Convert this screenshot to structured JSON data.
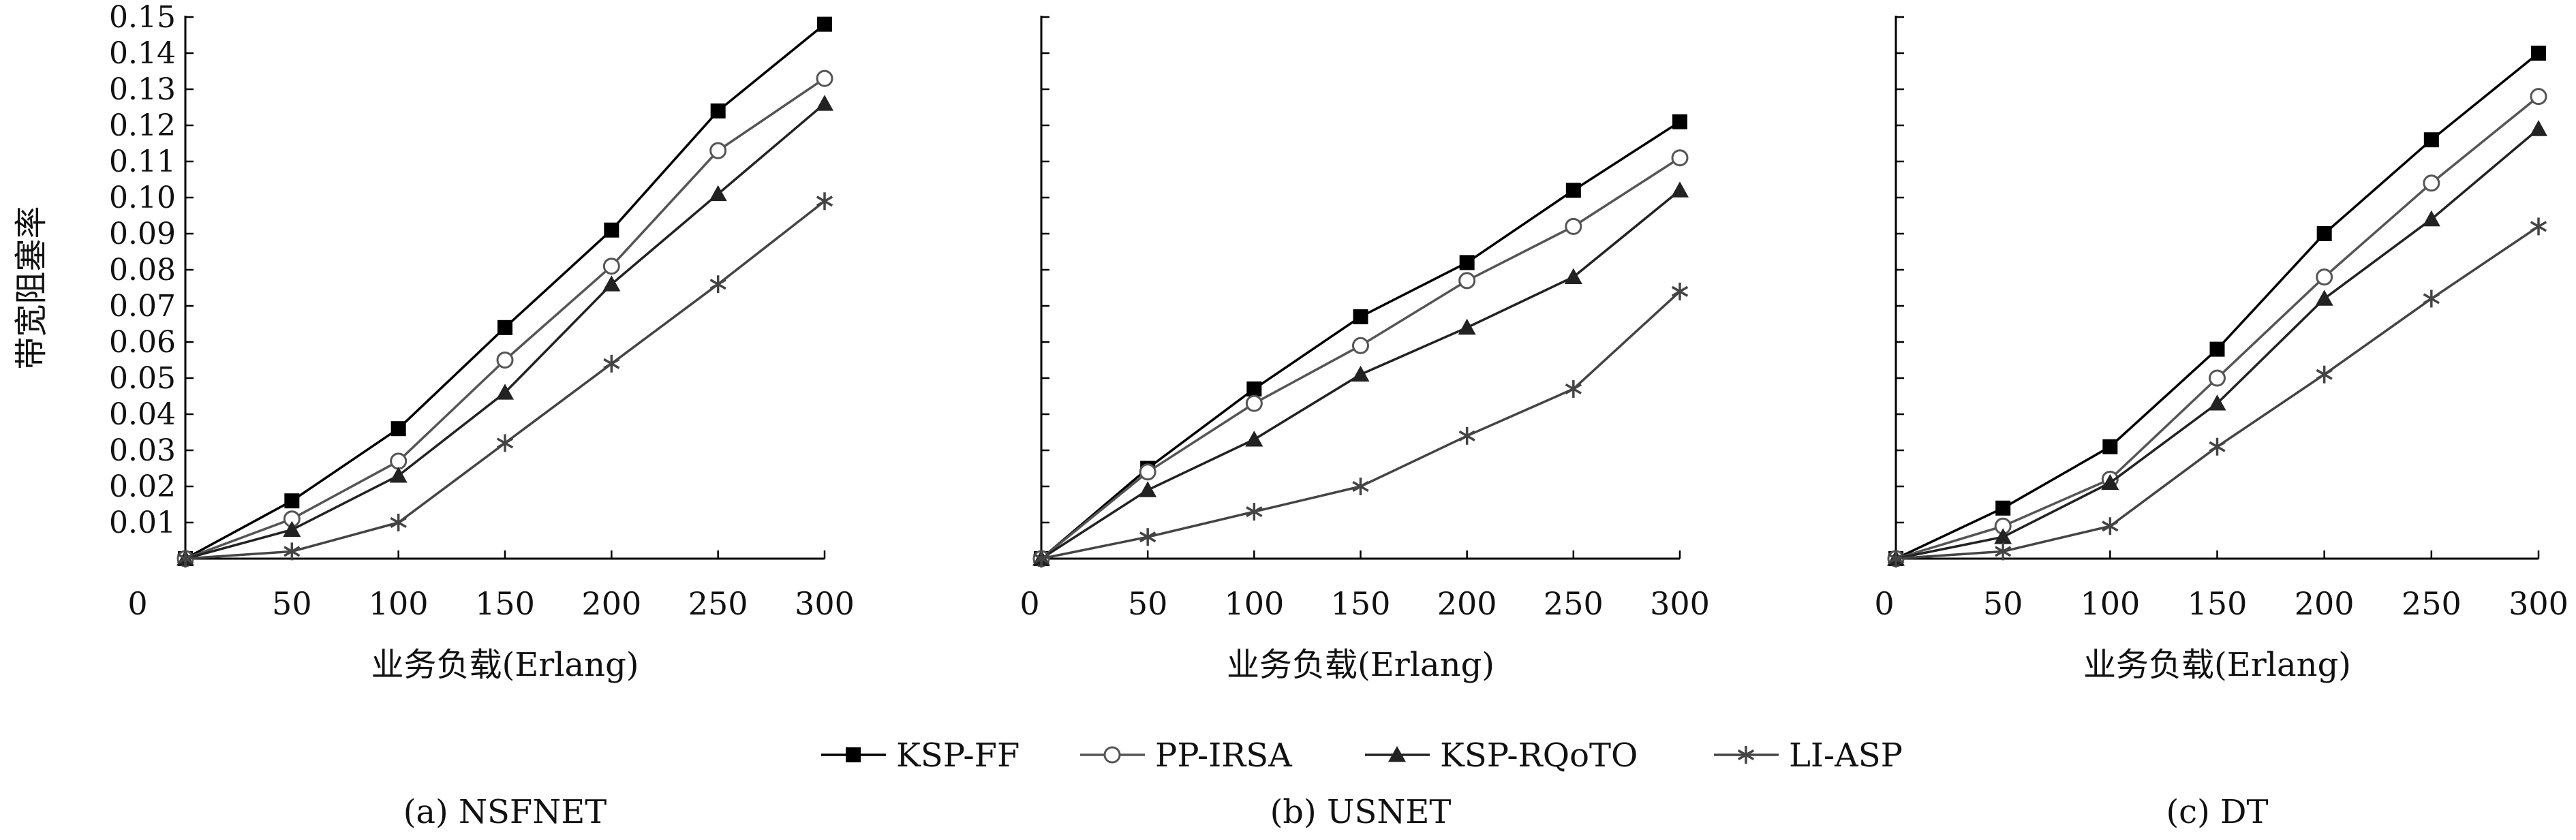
{
  "chart_data": [
    {
      "type": "line",
      "caption": "(a) NSFNET",
      "xlabel": "业务负载(Erlang)",
      "ylabel": "带宽阻塞率",
      "x": [
        0,
        50,
        100,
        150,
        200,
        250,
        300
      ],
      "xticks": [
        "0",
        "50",
        "100",
        "150",
        "200",
        "250",
        "300"
      ],
      "yticks": [
        "0.01",
        "0.02",
        "0.03",
        "0.04",
        "0.05",
        "0.06",
        "0.07",
        "0.08",
        "0.09",
        "0.10",
        "0.11",
        "0.12",
        "0.13",
        "0.14",
        "0.15"
      ],
      "xlim": [
        0,
        300
      ],
      "ylim": [
        0,
        0.15
      ],
      "series": [
        {
          "name": "KSP-FF",
          "values": [
            0,
            0.016,
            0.036,
            0.064,
            0.091,
            0.124,
            0.148
          ]
        },
        {
          "name": "PP-IRSA",
          "values": [
            0,
            0.011,
            0.027,
            0.055,
            0.081,
            0.113,
            0.133
          ]
        },
        {
          "name": "KSP-RQoTO",
          "values": [
            0,
            0.008,
            0.023,
            0.046,
            0.076,
            0.101,
            0.126
          ]
        },
        {
          "name": "LI-ASP",
          "values": [
            0,
            0.002,
            0.01,
            0.032,
            0.054,
            0.076,
            0.099
          ]
        }
      ]
    },
    {
      "type": "line",
      "caption": "(b) USNET",
      "xlabel": "业务负载(Erlang)",
      "ylabel": "",
      "x": [
        0,
        50,
        100,
        150,
        200,
        250,
        300
      ],
      "xticks": [
        "0",
        "50",
        "100",
        "150",
        "200",
        "250",
        "300"
      ],
      "yticks": [],
      "xlim": [
        0,
        300
      ],
      "ylim": [
        0,
        0.15
      ],
      "series": [
        {
          "name": "KSP-FF",
          "values": [
            0,
            0.025,
            0.047,
            0.067,
            0.082,
            0.102,
            0.121
          ]
        },
        {
          "name": "PP-IRSA",
          "values": [
            0,
            0.024,
            0.043,
            0.059,
            0.077,
            0.092,
            0.111
          ]
        },
        {
          "name": "KSP-RQoTO",
          "values": [
            0,
            0.019,
            0.033,
            0.051,
            0.064,
            0.078,
            0.102
          ]
        },
        {
          "name": "LI-ASP",
          "values": [
            0,
            0.006,
            0.013,
            0.02,
            0.034,
            0.047,
            0.074
          ]
        }
      ]
    },
    {
      "type": "line",
      "caption": "(c) DT",
      "xlabel": "业务负载(Erlang)",
      "ylabel": "",
      "x": [
        0,
        50,
        100,
        150,
        200,
        250,
        300
      ],
      "xticks": [
        "0",
        "50",
        "100",
        "150",
        "200",
        "250",
        "300"
      ],
      "yticks": [],
      "xlim": [
        0,
        300
      ],
      "ylim": [
        0,
        0.15
      ],
      "series": [
        {
          "name": "KSP-FF",
          "values": [
            0,
            0.014,
            0.031,
            0.058,
            0.09,
            0.116,
            0.14
          ]
        },
        {
          "name": "PP-IRSA",
          "values": [
            0,
            0.009,
            0.022,
            0.05,
            0.078,
            0.104,
            0.128
          ]
        },
        {
          "name": "KSP-RQoTO",
          "values": [
            0,
            0.006,
            0.021,
            0.043,
            0.072,
            0.094,
            0.119
          ]
        },
        {
          "name": "LI-ASP",
          "values": [
            0,
            0.002,
            0.009,
            0.031,
            0.051,
            0.072,
            0.092
          ]
        }
      ]
    }
  ],
  "legend": {
    "placement": "bottom-center",
    "items": [
      {
        "name": "KSP-FF",
        "marker": "filled-square",
        "color": "#000000"
      },
      {
        "name": "PP-IRSA",
        "marker": "open-circle",
        "color": "#555555"
      },
      {
        "name": "KSP-RQoTO",
        "marker": "filled-triangle",
        "color": "#222222"
      },
      {
        "name": "LI-ASP",
        "marker": "asterisk",
        "color": "#444444"
      }
    ]
  }
}
